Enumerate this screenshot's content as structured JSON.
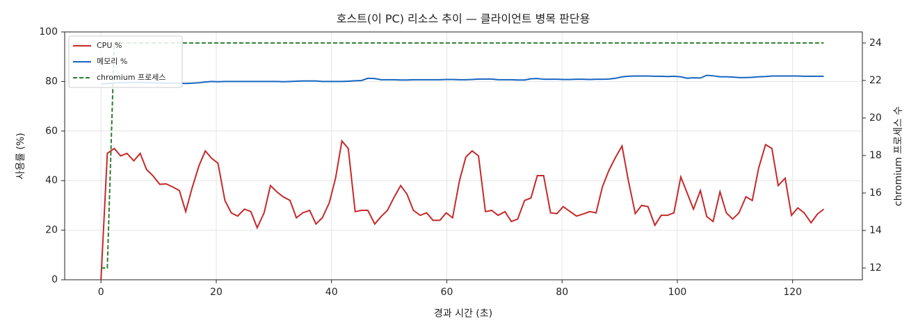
{
  "chart_data": {
    "type": "line",
    "title": "호스트(이 PC) 리소스 추이 — 클라이언트 병목 판단용",
    "xlabel": "경과 시간 (초)",
    "ylabel": "사용률 (%)",
    "y2label": "chromium 프로세스 수",
    "x": [
      0,
      1.1,
      2.3,
      3.4,
      4.5,
      5.7,
      6.8,
      7.9,
      9,
      10.2,
      11.3,
      12.4,
      13.6,
      14.7,
      15.8,
      17,
      18.1,
      19.2,
      20.3,
      21.5,
      22.6,
      23.7,
      24.9,
      26,
      27.1,
      28.3,
      29.4,
      30.5,
      31.6,
      32.8,
      33.9,
      35,
      36.2,
      37.3,
      38.4,
      39.6,
      40.7,
      41.8,
      42.9,
      44.1,
      45.2,
      46.3,
      47.5,
      48.6,
      49.7,
      50.9,
      52,
      53.1,
      54.2,
      55.4,
      56.5,
      57.6,
      58.8,
      59.9,
      61,
      62.2,
      63.3,
      64.4,
      65.5,
      66.7,
      67.8,
      68.9,
      70.1,
      71.2,
      72.3,
      73.5,
      74.6,
      75.7,
      76.8,
      78,
      79.1,
      80.2,
      81.4,
      82.5,
      83.6,
      84.8,
      85.9,
      87,
      88.1,
      89.3,
      90.4,
      91.5,
      92.7,
      93.8,
      94.9,
      96.1,
      97.2,
      98.3,
      99.4,
      100.6,
      101.7,
      102.8,
      104,
      105.1,
      106.2,
      107.4,
      108.5,
      109.6,
      110.7,
      111.9,
      113,
      114.1,
      115.3,
      116.4,
      117.5,
      118.7,
      119.8,
      120.9,
      122,
      123.2,
      124.3,
      125.4
    ],
    "series": [
      {
        "name": "CPU %",
        "color": "#c62828",
        "dash": false,
        "values": [
          0,
          51,
          53,
          50,
          51,
          48,
          51,
          44.5,
          42,
          38.5,
          38.7,
          37.5,
          36,
          27.5,
          37,
          46,
          52,
          49,
          47,
          32,
          27,
          25.7,
          28.5,
          27.5,
          21,
          27,
          38,
          35.5,
          33.5,
          32,
          25,
          27,
          28,
          22.5,
          25,
          31,
          41,
          56,
          53,
          27.5,
          28,
          28,
          22.5,
          25.5,
          28,
          33.5,
          38,
          34.5,
          28,
          26,
          27,
          24,
          24,
          27,
          25,
          40,
          49.5,
          52,
          50,
          27.5,
          28,
          26,
          27.5,
          23.5,
          24.5,
          32,
          33,
          42,
          42,
          27,
          26.7,
          29.5,
          27.5,
          25.7,
          26.5,
          27.5,
          27,
          37.5,
          44,
          49.5,
          54,
          40,
          26.7,
          30,
          29.5,
          22,
          26,
          26,
          27,
          41.5,
          35,
          28.5,
          36,
          25.5,
          23.5,
          35.5,
          27,
          24.5,
          27,
          33.5,
          32,
          45,
          54.5,
          53,
          38,
          41,
          26,
          29,
          27,
          23,
          26.5,
          28.5
        ]
      },
      {
        "name": "메모리 %",
        "color": "#1565c0",
        "dash": false,
        "values": [
          79,
          79.2,
          79.4,
          79.5,
          79.5,
          79.6,
          79.6,
          79.5,
          79.4,
          79.4,
          79.3,
          79.4,
          79.3,
          79.2,
          79.3,
          79.5,
          79.8,
          80,
          79.9,
          80,
          80,
          80,
          80,
          80,
          80,
          80,
          80,
          80,
          79.9,
          80,
          80.1,
          80.2,
          80.2,
          80.2,
          80,
          80,
          80,
          80,
          80.1,
          80.3,
          80.4,
          81.3,
          81.2,
          80.7,
          80.7,
          80.7,
          80.6,
          80.6,
          80.7,
          80.7,
          80.7,
          80.7,
          80.7,
          80.8,
          80.8,
          80.7,
          80.7,
          80.8,
          81,
          81,
          81,
          80.7,
          80.7,
          80.7,
          80.6,
          80.6,
          81.1,
          81.2,
          80.9,
          80.9,
          80.9,
          80.8,
          80.8,
          80.9,
          80.9,
          80.8,
          80.9,
          80.9,
          81,
          81.3,
          81.9,
          82.1,
          82.2,
          82.2,
          82.2,
          82.1,
          82.1,
          82,
          82.1,
          81.9,
          81.3,
          81.5,
          81.4,
          82.5,
          82.3,
          81.9,
          81.9,
          81.8,
          81.6,
          81.6,
          81.7,
          81.9,
          82,
          82.2,
          82.2,
          82.2,
          82.2,
          82.2,
          82.1,
          82.1,
          82.1,
          82.1
        ]
      },
      {
        "name": "chromium 프로세스",
        "color": "#2e7d32",
        "dash": true,
        "axis": "y2",
        "values": [
          12,
          12,
          24,
          24,
          24,
          24,
          24,
          24,
          24,
          24,
          24,
          24,
          24,
          24,
          24,
          24,
          24,
          24,
          24,
          24,
          24,
          24,
          24,
          24,
          24,
          24,
          24,
          24,
          24,
          24,
          24,
          24,
          24,
          24,
          24,
          24,
          24,
          24,
          24,
          24,
          24,
          24,
          24,
          24,
          24,
          24,
          24,
          24,
          24,
          24,
          24,
          24,
          24,
          24,
          24,
          24,
          24,
          24,
          24,
          24,
          24,
          24,
          24,
          24,
          24,
          24,
          24,
          24,
          24,
          24,
          24,
          24,
          24,
          24,
          24,
          24,
          24,
          24,
          24,
          24,
          24,
          24,
          24,
          24,
          24,
          24,
          24,
          24,
          24,
          24,
          24,
          24,
          24,
          24,
          24,
          24,
          24,
          24,
          24,
          24,
          24,
          24,
          24,
          24,
          24,
          24,
          24,
          24,
          24,
          24,
          24,
          24
        ]
      }
    ],
    "xlim": [
      -6.3,
      132.1
    ],
    "xticks": [
      0,
      20,
      40,
      60,
      80,
      100,
      120
    ],
    "ylim": [
      0,
      100
    ],
    "yticks": [
      0,
      20,
      40,
      60,
      80,
      100
    ],
    "y2lim": [
      11.37,
      24.59
    ],
    "y2ticks": [
      12,
      14,
      16,
      18,
      20,
      22,
      24
    ],
    "grid": true,
    "legend": "upper-left"
  }
}
